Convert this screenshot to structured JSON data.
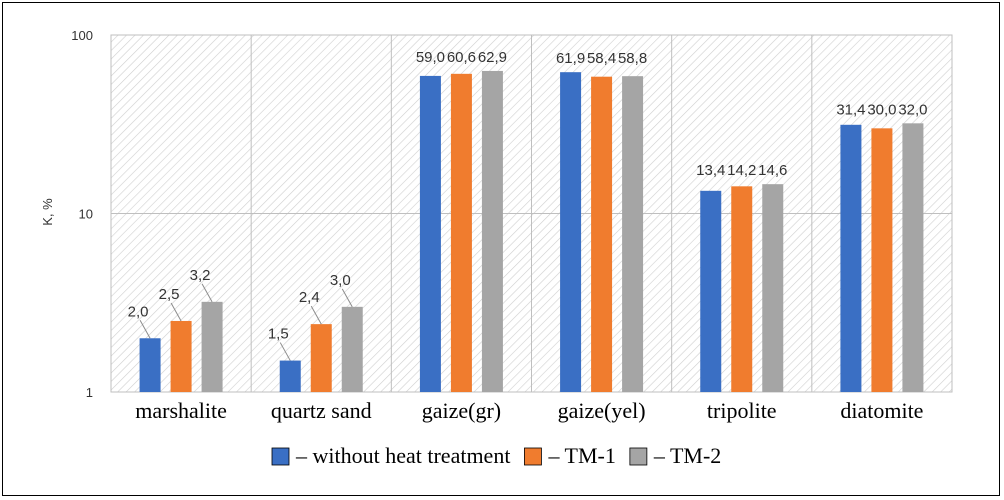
{
  "chart_data": {
    "type": "bar",
    "yscale": "log",
    "ylim": [
      1,
      100
    ],
    "ylabel": "K, %",
    "yticks": [
      "1",
      "10",
      "100"
    ],
    "grid": true,
    "legend_position": "bottom",
    "categories": [
      "marshalite",
      "quartz sand",
      "gaize(gr)",
      "gaize(yel)",
      "tripolite",
      "diatomite"
    ],
    "series": [
      {
        "name": "– without heat treatment",
        "color": "#3a6fc4",
        "values": [
          2.0,
          1.5,
          59.0,
          61.9,
          13.4,
          31.4
        ],
        "labels": [
          "2,0",
          "1,5",
          "59,0",
          "61,9",
          "13,4",
          "31,4"
        ]
      },
      {
        "name": "– TM-1",
        "color": "#f07c2e",
        "values": [
          2.5,
          2.4,
          60.6,
          58.4,
          14.2,
          30.0
        ],
        "labels": [
          "2,5",
          "2,4",
          "60,6",
          "58,4",
          "14,2",
          "30,0"
        ]
      },
      {
        "name": "– TM-2",
        "color": "#a5a5a5",
        "values": [
          3.2,
          3.0,
          62.9,
          58.8,
          14.6,
          32.0
        ],
        "labels": [
          "3,2",
          "3,0",
          "62,9",
          "58,8",
          "14,6",
          "32,0"
        ]
      }
    ]
  }
}
